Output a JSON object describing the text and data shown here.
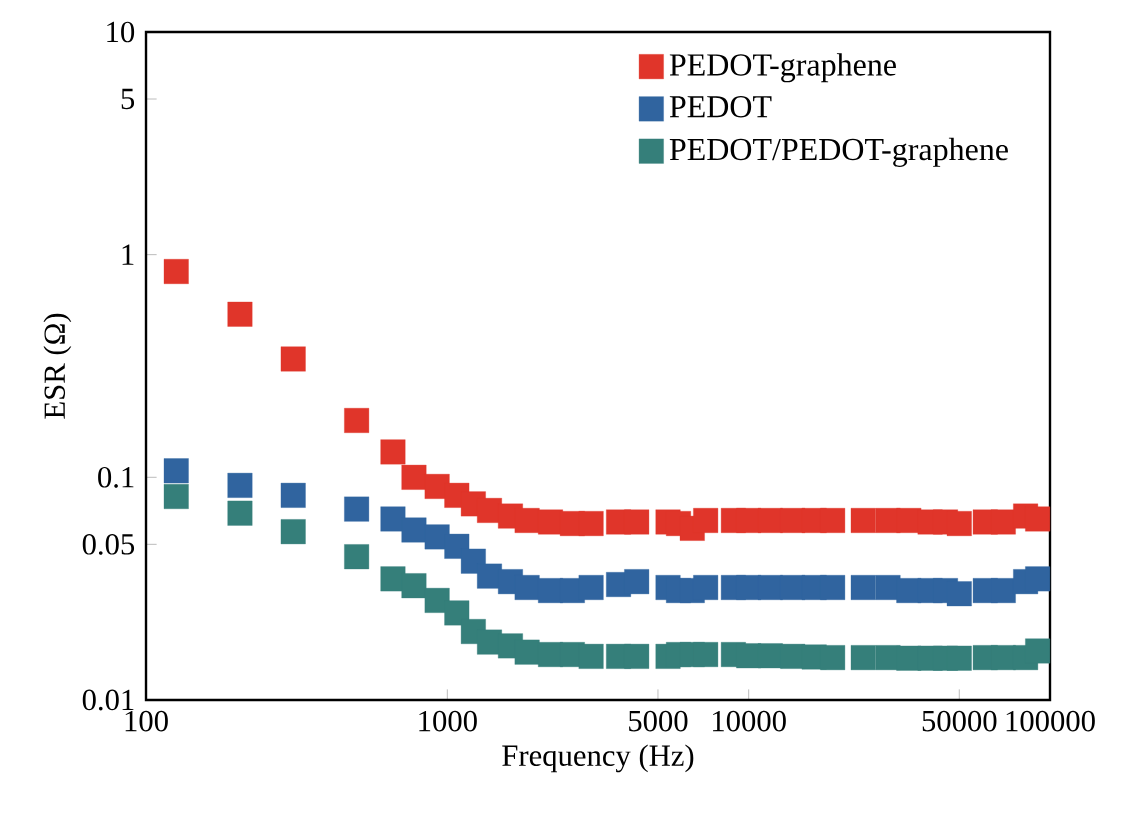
{
  "chart_data": {
    "type": "scatter",
    "xlabel": "Frequency (Hz)",
    "ylabel": "ESR (Ω)",
    "log": "xy",
    "marker": "square",
    "legend": "top right",
    "xlim": [
      100,
      100000
    ],
    "ylim": [
      0.01,
      10
    ],
    "xticks": [
      100,
      1000,
      5000,
      10000,
      50000,
      100000
    ],
    "yticks": [
      0.01,
      0.05,
      0.1,
      1,
      5,
      10
    ],
    "x": [
      126,
      205,
      308,
      500,
      660,
      775,
      925,
      1075,
      1220,
      1380,
      1620,
      1840,
      2200,
      2600,
      3000,
      3700,
      4250,
      5400,
      5850,
      6500,
      7200,
      8900,
      10000,
      11800,
      14000,
      16500,
      19000,
      24000,
      29000,
      34000,
      40000,
      45000,
      50000,
      61000,
      70000,
      83000,
      91000
    ],
    "series": [
      {
        "name": "PEDOT-graphene",
        "color": "#e0352a",
        "values": [
          0.84,
          0.54,
          0.34,
          0.18,
          0.13,
          0.1,
          0.091,
          0.083,
          0.076,
          0.071,
          0.067,
          0.064,
          0.063,
          0.062,
          0.062,
          0.063,
          0.063,
          0.063,
          0.062,
          0.059,
          0.064,
          0.064,
          0.064,
          0.064,
          0.064,
          0.064,
          0.064,
          0.064,
          0.064,
          0.064,
          0.063,
          0.063,
          0.062,
          0.063,
          0.063,
          0.067,
          0.065
        ]
      },
      {
        "name": "PEDOT",
        "color": "#30649f",
        "values": [
          0.107,
          0.092,
          0.083,
          0.072,
          0.065,
          0.058,
          0.054,
          0.049,
          0.042,
          0.036,
          0.034,
          0.032,
          0.031,
          0.031,
          0.032,
          0.033,
          0.034,
          0.032,
          0.031,
          0.031,
          0.032,
          0.032,
          0.032,
          0.032,
          0.032,
          0.032,
          0.032,
          0.032,
          0.032,
          0.031,
          0.031,
          0.031,
          0.03,
          0.031,
          0.031,
          0.034,
          0.035
        ]
      },
      {
        "name": "PEDOT/PEDOT-graphene",
        "color": "#357f7a",
        "values": [
          0.082,
          0.069,
          0.057,
          0.044,
          0.035,
          0.0326,
          0.028,
          0.0246,
          0.0203,
          0.0182,
          0.0175,
          0.0164,
          0.016,
          0.016,
          0.0157,
          0.0157,
          0.0157,
          0.0157,
          0.016,
          0.016,
          0.016,
          0.016,
          0.0158,
          0.0158,
          0.0157,
          0.0156,
          0.0155,
          0.0155,
          0.0155,
          0.0154,
          0.0154,
          0.0154,
          0.0154,
          0.0155,
          0.0155,
          0.0155,
          0.0166
        ]
      }
    ]
  }
}
